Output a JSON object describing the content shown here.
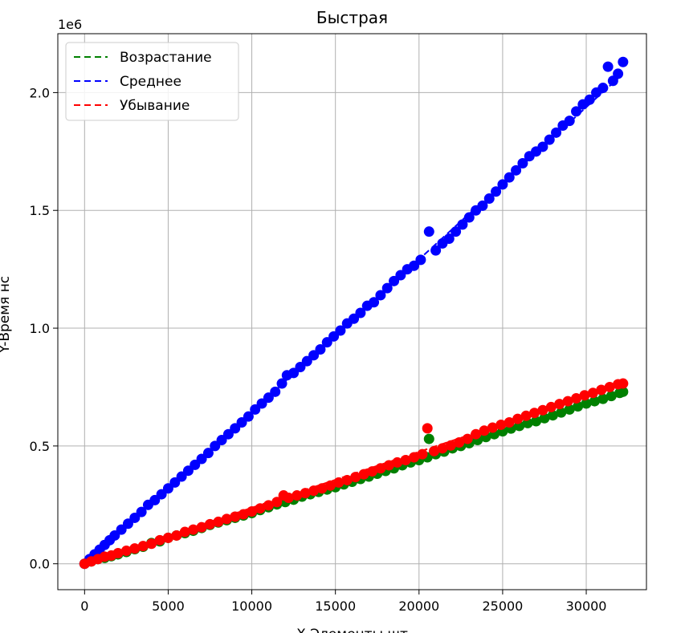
{
  "chart_data": {
    "type": "scatter",
    "title": "Быстрая",
    "xlabel": "X-Элементы шт",
    "ylabel": "Y-Время нс",
    "offset_text": "1e6",
    "xlim": [
      -1600,
      33600
    ],
    "ylim": [
      -0.11,
      2.25
    ],
    "y_multiplier": 1000000,
    "x_ticks": [
      0,
      5000,
      10000,
      15000,
      20000,
      25000,
      30000
    ],
    "x_tick_labels": [
      "0",
      "5000",
      "10000",
      "15000",
      "20000",
      "25000",
      "30000"
    ],
    "y_ticks": [
      0.0,
      0.5,
      1.0,
      1.5,
      2.0
    ],
    "y_tick_labels": [
      "0.0",
      "0.5",
      "1.0",
      "1.5",
      "2.0"
    ],
    "grid": true,
    "legend": "top-left",
    "series": [
      {
        "name": "Возрастание",
        "color": "#008000",
        "trend": [
          [
            0,
            0.0
          ],
          [
            32200,
            0.727
          ]
        ],
        "points": [
          [
            0,
            0.0
          ],
          [
            400,
            0.01
          ],
          [
            800,
            0.02
          ],
          [
            1200,
            0.025
          ],
          [
            1600,
            0.032
          ],
          [
            2000,
            0.04
          ],
          [
            2500,
            0.05
          ],
          [
            3000,
            0.062
          ],
          [
            3500,
            0.072
          ],
          [
            4000,
            0.088
          ],
          [
            4500,
            0.095
          ],
          [
            5000,
            0.11
          ],
          [
            5500,
            0.12
          ],
          [
            6000,
            0.13
          ],
          [
            6500,
            0.14
          ],
          [
            7000,
            0.152
          ],
          [
            7500,
            0.165
          ],
          [
            8000,
            0.175
          ],
          [
            8500,
            0.185
          ],
          [
            9000,
            0.195
          ],
          [
            9500,
            0.205
          ],
          [
            10000,
            0.215
          ],
          [
            10500,
            0.228
          ],
          [
            11000,
            0.24
          ],
          [
            11500,
            0.252
          ],
          [
            12000,
            0.262
          ],
          [
            12500,
            0.272
          ],
          [
            13000,
            0.285
          ],
          [
            13500,
            0.295
          ],
          [
            14000,
            0.305
          ],
          [
            14500,
            0.315
          ],
          [
            15000,
            0.325
          ],
          [
            15500,
            0.337
          ],
          [
            16000,
            0.348
          ],
          [
            16500,
            0.36
          ],
          [
            17000,
            0.37
          ],
          [
            17500,
            0.382
          ],
          [
            18000,
            0.394
          ],
          [
            18500,
            0.405
          ],
          [
            19000,
            0.418
          ],
          [
            19500,
            0.43
          ],
          [
            20000,
            0.44
          ],
          [
            20500,
            0.452
          ],
          [
            20600,
            0.53
          ],
          [
            21000,
            0.465
          ],
          [
            21500,
            0.476
          ],
          [
            22000,
            0.49
          ],
          [
            22500,
            0.5
          ],
          [
            23000,
            0.512
          ],
          [
            23500,
            0.525
          ],
          [
            24000,
            0.538
          ],
          [
            24500,
            0.55
          ],
          [
            25000,
            0.562
          ],
          [
            25500,
            0.574
          ],
          [
            26000,
            0.585
          ],
          [
            26500,
            0.597
          ],
          [
            27000,
            0.605
          ],
          [
            27500,
            0.618
          ],
          [
            28000,
            0.63
          ],
          [
            28500,
            0.642
          ],
          [
            29000,
            0.655
          ],
          [
            29500,
            0.668
          ],
          [
            30000,
            0.68
          ],
          [
            30500,
            0.69
          ],
          [
            31000,
            0.7
          ],
          [
            31500,
            0.712
          ],
          [
            32000,
            0.725
          ],
          [
            32200,
            0.73
          ]
        ]
      },
      {
        "name": "Среднее",
        "color": "#0000ff",
        "trend": [
          [
            0,
            0.0
          ],
          [
            32200,
            2.08
          ]
        ],
        "points": [
          [
            0,
            0.0
          ],
          [
            300,
            0.02
          ],
          [
            600,
            0.04
          ],
          [
            900,
            0.06
          ],
          [
            1200,
            0.08
          ],
          [
            1500,
            0.1
          ],
          [
            1800,
            0.12
          ],
          [
            2200,
            0.145
          ],
          [
            2600,
            0.17
          ],
          [
            3000,
            0.195
          ],
          [
            3400,
            0.22
          ],
          [
            3800,
            0.25
          ],
          [
            4200,
            0.27
          ],
          [
            4600,
            0.295
          ],
          [
            5000,
            0.32
          ],
          [
            5400,
            0.345
          ],
          [
            5800,
            0.37
          ],
          [
            6200,
            0.395
          ],
          [
            6600,
            0.42
          ],
          [
            7000,
            0.445
          ],
          [
            7400,
            0.47
          ],
          [
            7800,
            0.5
          ],
          [
            8200,
            0.525
          ],
          [
            8600,
            0.55
          ],
          [
            9000,
            0.575
          ],
          [
            9400,
            0.6
          ],
          [
            9800,
            0.625
          ],
          [
            10200,
            0.655
          ],
          [
            10600,
            0.68
          ],
          [
            11000,
            0.705
          ],
          [
            11400,
            0.73
          ],
          [
            11800,
            0.765
          ],
          [
            12100,
            0.8
          ],
          [
            12500,
            0.81
          ],
          [
            12900,
            0.835
          ],
          [
            13300,
            0.86
          ],
          [
            13700,
            0.885
          ],
          [
            14100,
            0.91
          ],
          [
            14500,
            0.94
          ],
          [
            14900,
            0.965
          ],
          [
            15300,
            0.99
          ],
          [
            15700,
            1.02
          ],
          [
            16100,
            1.04
          ],
          [
            16500,
            1.065
          ],
          [
            16900,
            1.095
          ],
          [
            17300,
            1.11
          ],
          [
            17700,
            1.14
          ],
          [
            18100,
            1.17
          ],
          [
            18500,
            1.2
          ],
          [
            18900,
            1.225
          ],
          [
            19300,
            1.25
          ],
          [
            19700,
            1.265
          ],
          [
            20100,
            1.29
          ],
          [
            20600,
            1.41
          ],
          [
            21000,
            1.33
          ],
          [
            21400,
            1.36
          ],
          [
            21800,
            1.38
          ],
          [
            22200,
            1.41
          ],
          [
            22600,
            1.44
          ],
          [
            23000,
            1.47
          ],
          [
            23400,
            1.5
          ],
          [
            23800,
            1.52
          ],
          [
            24200,
            1.55
          ],
          [
            24600,
            1.58
          ],
          [
            25000,
            1.61
          ],
          [
            25400,
            1.64
          ],
          [
            25800,
            1.67
          ],
          [
            26200,
            1.7
          ],
          [
            26600,
            1.73
          ],
          [
            27000,
            1.75
          ],
          [
            27400,
            1.77
          ],
          [
            27800,
            1.8
          ],
          [
            28200,
            1.83
          ],
          [
            28600,
            1.86
          ],
          [
            29000,
            1.88
          ],
          [
            29400,
            1.92
          ],
          [
            29800,
            1.95
          ],
          [
            30200,
            1.97
          ],
          [
            30600,
            2.0
          ],
          [
            31000,
            2.02
          ],
          [
            31300,
            2.11
          ],
          [
            31600,
            2.05
          ],
          [
            31900,
            2.08
          ],
          [
            32200,
            2.13
          ]
        ]
      },
      {
        "name": "Убывание",
        "color": "#ff0000",
        "trend": [
          [
            0,
            0.0
          ],
          [
            32200,
            0.765
          ]
        ],
        "points": [
          [
            0,
            0.0
          ],
          [
            400,
            0.01
          ],
          [
            800,
            0.02
          ],
          [
            1200,
            0.03
          ],
          [
            1600,
            0.035
          ],
          [
            2000,
            0.045
          ],
          [
            2500,
            0.055
          ],
          [
            3000,
            0.065
          ],
          [
            3500,
            0.075
          ],
          [
            4000,
            0.085
          ],
          [
            4500,
            0.1
          ],
          [
            5000,
            0.11
          ],
          [
            5500,
            0.12
          ],
          [
            6000,
            0.135
          ],
          [
            6500,
            0.145
          ],
          [
            7000,
            0.155
          ],
          [
            7500,
            0.168
          ],
          [
            8000,
            0.178
          ],
          [
            8500,
            0.19
          ],
          [
            9000,
            0.2
          ],
          [
            9500,
            0.21
          ],
          [
            10000,
            0.222
          ],
          [
            10500,
            0.235
          ],
          [
            11000,
            0.248
          ],
          [
            11500,
            0.262
          ],
          [
            11900,
            0.29
          ],
          [
            12200,
            0.28
          ],
          [
            12700,
            0.29
          ],
          [
            13200,
            0.3
          ],
          [
            13700,
            0.31
          ],
          [
            14200,
            0.32
          ],
          [
            14700,
            0.332
          ],
          [
            15200,
            0.345
          ],
          [
            15700,
            0.355
          ],
          [
            16200,
            0.368
          ],
          [
            16700,
            0.38
          ],
          [
            17200,
            0.392
          ],
          [
            17700,
            0.405
          ],
          [
            18200,
            0.418
          ],
          [
            18700,
            0.43
          ],
          [
            19200,
            0.44
          ],
          [
            19700,
            0.452
          ],
          [
            20200,
            0.465
          ],
          [
            20500,
            0.575
          ],
          [
            20900,
            0.478
          ],
          [
            21400,
            0.49
          ],
          [
            21900,
            0.502
          ],
          [
            22400,
            0.515
          ],
          [
            22900,
            0.53
          ],
          [
            23400,
            0.55
          ],
          [
            23900,
            0.565
          ],
          [
            24400,
            0.578
          ],
          [
            24900,
            0.59
          ],
          [
            25400,
            0.6
          ],
          [
            25900,
            0.615
          ],
          [
            26400,
            0.628
          ],
          [
            26900,
            0.64
          ],
          [
            27400,
            0.652
          ],
          [
            27900,
            0.665
          ],
          [
            28400,
            0.678
          ],
          [
            28900,
            0.69
          ],
          [
            29400,
            0.702
          ],
          [
            29900,
            0.715
          ],
          [
            30400,
            0.725
          ],
          [
            30900,
            0.738
          ],
          [
            31400,
            0.75
          ],
          [
            31900,
            0.762
          ],
          [
            32200,
            0.765
          ]
        ]
      }
    ]
  }
}
